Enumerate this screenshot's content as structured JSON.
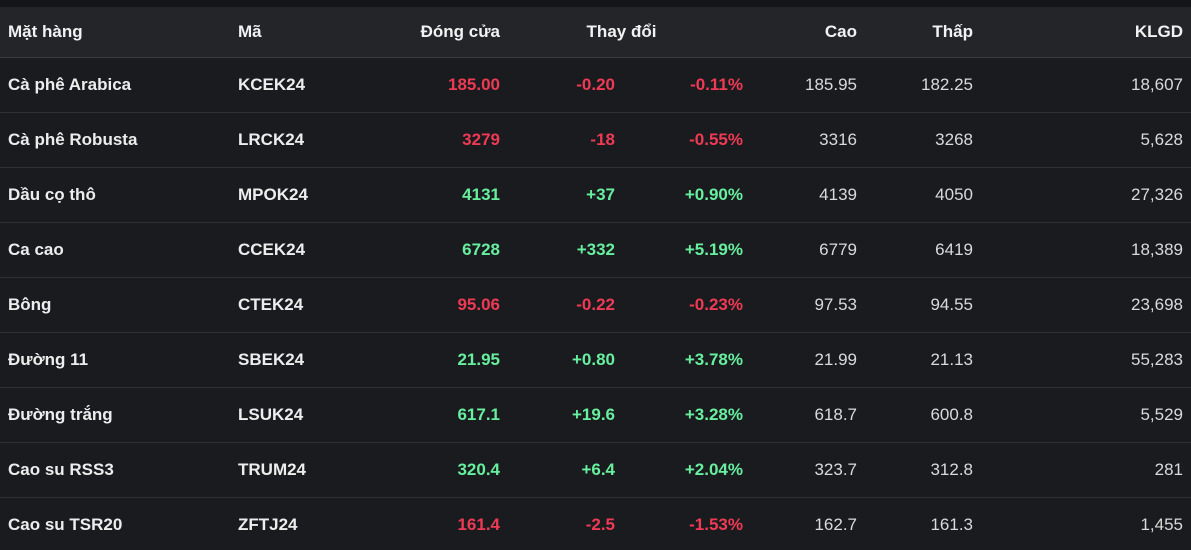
{
  "table": {
    "headers": {
      "commodity": "Mặt hàng",
      "code": "Mã",
      "close": "Đóng cửa",
      "change": "Thay đổi",
      "high": "Cao",
      "low": "Thấp",
      "volume": "KLGD"
    },
    "rows": [
      {
        "name": "Cà phê Arabica",
        "code": "KCEK24",
        "close": "185.00",
        "change": "-0.20",
        "change_pct": "-0.11%",
        "high": "185.95",
        "low": "182.25",
        "volume": "18,607",
        "direction": "down"
      },
      {
        "name": "Cà phê Robusta",
        "code": "LRCK24",
        "close": "3279",
        "change": "-18",
        "change_pct": "-0.55%",
        "high": "3316",
        "low": "3268",
        "volume": "5,628",
        "direction": "down"
      },
      {
        "name": "Dầu cọ thô",
        "code": "MPOK24",
        "close": "4131",
        "change": "+37",
        "change_pct": "+0.90%",
        "high": "4139",
        "low": "4050",
        "volume": "27,326",
        "direction": "up"
      },
      {
        "name": "Ca cao",
        "code": "CCEK24",
        "close": "6728",
        "change": "+332",
        "change_pct": "+5.19%",
        "high": "6779",
        "low": "6419",
        "volume": "18,389",
        "direction": "up"
      },
      {
        "name": "Bông",
        "code": "CTEK24",
        "close": "95.06",
        "change": "-0.22",
        "change_pct": "-0.23%",
        "high": "97.53",
        "low": "94.55",
        "volume": "23,698",
        "direction": "down"
      },
      {
        "name": "Đường 11",
        "code": "SBEK24",
        "close": "21.95",
        "change": "+0.80",
        "change_pct": "+3.78%",
        "high": "21.99",
        "low": "21.13",
        "volume": "55,283",
        "direction": "up"
      },
      {
        "name": "Đường trắng",
        "code": "LSUK24",
        "close": "617.1",
        "change": "+19.6",
        "change_pct": "+3.28%",
        "high": "618.7",
        "low": "600.8",
        "volume": "5,529",
        "direction": "up"
      },
      {
        "name": "Cao su RSS3",
        "code": "TRUM24",
        "close": "320.4",
        "change": "+6.4",
        "change_pct": "+2.04%",
        "high": "323.7",
        "low": "312.8",
        "volume": "281",
        "direction": "up"
      },
      {
        "name": "Cao su TSR20",
        "code": "ZFTJ24",
        "close": "161.4",
        "change": "-2.5",
        "change_pct": "-1.53%",
        "high": "162.7",
        "low": "161.3",
        "volume": "1,455",
        "direction": "down"
      }
    ]
  },
  "colors": {
    "up": "#67ef9f",
    "down": "#ee3a54",
    "header_bg": "#232529",
    "row_bg": "#1a1b1e"
  }
}
